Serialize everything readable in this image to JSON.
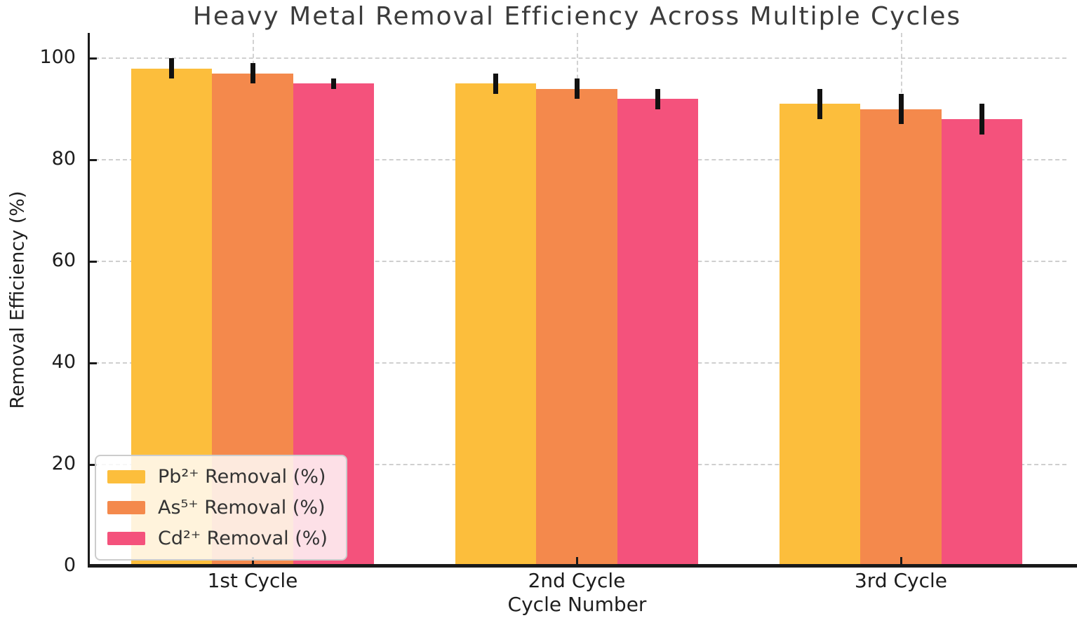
{
  "chart_data": {
    "type": "bar",
    "title": "Heavy Metal Removal Efficiency Across Multiple Cycles",
    "xlabel": "Cycle Number",
    "ylabel": "Removal Efficiency (%)",
    "categories": [
      "1st Cycle",
      "2nd Cycle",
      "3rd Cycle"
    ],
    "series": [
      {
        "name": "Pb²⁺ Removal (%)",
        "color": "#FCBE3C",
        "values": [
          98,
          95,
          91
        ],
        "errors": [
          2,
          2,
          3
        ]
      },
      {
        "name": "As⁵⁺ Removal (%)",
        "color": "#F4894C",
        "values": [
          97,
          94,
          90
        ],
        "errors": [
          2,
          2,
          3
        ]
      },
      {
        "name": "Cd²⁺ Removal (%)",
        "color": "#F4527C",
        "values": [
          95,
          92,
          88
        ],
        "errors": [
          1,
          2,
          3
        ]
      }
    ],
    "ylim": [
      0,
      105
    ],
    "yticks": [
      0,
      20,
      40,
      60,
      80,
      100
    ],
    "grid": "dashed-both-axes",
    "error_bar_color": "#111111",
    "legend_position": "lower left"
  }
}
